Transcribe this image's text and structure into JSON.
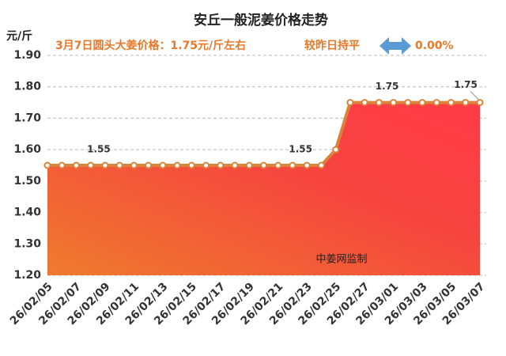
{
  "chart_data": {
    "type": "area",
    "title": "安丘一般泥姜价格走势",
    "subtitle": "3月7日圆头大姜价格：1.75元/斤左右",
    "change_text": "较昨日持平",
    "change_value": "0.00%",
    "y_axis_label": "元/斤",
    "watermark": "中姜网监制",
    "x": [
      "26/02/05",
      null,
      "26/02/07",
      null,
      "26/02/09",
      null,
      "26/02/11",
      null,
      "26/02/13",
      null,
      "26/02/15",
      null,
      "26/02/17",
      null,
      "26/02/19",
      null,
      "26/02/21",
      null,
      "26/02/23",
      null,
      "26/02/25",
      null,
      "26/02/27",
      null,
      "26/03/01",
      null,
      "26/03/03",
      null,
      "26/03/05",
      null,
      "26/03/07"
    ],
    "values": [
      1.55,
      1.55,
      1.55,
      1.55,
      1.55,
      1.55,
      1.55,
      1.55,
      1.55,
      1.55,
      1.55,
      1.55,
      1.55,
      1.55,
      1.55,
      1.55,
      1.55,
      1.55,
      1.55,
      1.55,
      1.6,
      1.75,
      1.75,
      1.75,
      1.75,
      1.75,
      1.75,
      1.75,
      1.75,
      1.75,
      1.75
    ],
    "value_labels": [
      null,
      null,
      null,
      null,
      "1.55",
      null,
      null,
      null,
      null,
      null,
      null,
      null,
      null,
      null,
      null,
      null,
      null,
      null,
      "1.55",
      null,
      null,
      null,
      null,
      null,
      "1.75",
      null,
      null,
      null,
      null,
      null,
      "1.75"
    ],
    "color": "#d9843a",
    "ylim": [
      1.2,
      1.9
    ],
    "yticks": [
      {
        "value": 1.2,
        "label": "1.20"
      },
      {
        "value": 1.3,
        "label": "1.30"
      },
      {
        "value": 1.4,
        "label": "1.40"
      },
      {
        "value": 1.5,
        "label": "1.50"
      },
      {
        "value": 1.6,
        "label": "1.60"
      },
      {
        "value": 1.7,
        "label": "1.70"
      },
      {
        "value": 1.8,
        "label": "1.80"
      },
      {
        "value": 1.9,
        "label": "1.90"
      }
    ],
    "grid": true
  }
}
